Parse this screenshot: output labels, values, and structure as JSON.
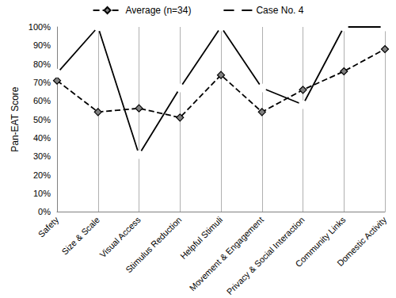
{
  "chart_data": {
    "type": "line",
    "y_label": "Pan-EAT Score",
    "categories": [
      "Safety",
      "Size & Scale",
      "Visual Access",
      "Stimulus Reduction",
      "Helpful Stimuli",
      "Movement & Engagement",
      "Privacy & Social Interaction",
      "Community Links",
      "Domestic Activity"
    ],
    "series": [
      {
        "name": "Average (n=34)",
        "color": "#808080",
        "marker": "diamond",
        "line_style": "dashed",
        "values": [
          71,
          54,
          56,
          51,
          74,
          54,
          66,
          76,
          88
        ]
      },
      {
        "name": "Case No. 4",
        "color": "#000000",
        "marker": "emptyCircle",
        "line_style": "solid",
        "values": [
          75,
          100,
          31,
          67,
          100,
          67,
          58,
          100,
          100
        ]
      }
    ],
    "ylim": [
      0,
      100
    ],
    "yticks": [
      {
        "value": 0,
        "label": "0%"
      },
      {
        "value": 10,
        "label": "10%"
      },
      {
        "value": 20,
        "label": "20%"
      },
      {
        "value": 30,
        "label": "30%"
      },
      {
        "value": 40,
        "label": "40%"
      },
      {
        "value": 50,
        "label": "50%"
      },
      {
        "value": 60,
        "label": "60%"
      },
      {
        "value": 70,
        "label": "70%"
      },
      {
        "value": 80,
        "label": "80%"
      },
      {
        "value": 90,
        "label": "90%"
      },
      {
        "value": 100,
        "label": "100%"
      }
    ],
    "grid": true,
    "legend": "top"
  }
}
